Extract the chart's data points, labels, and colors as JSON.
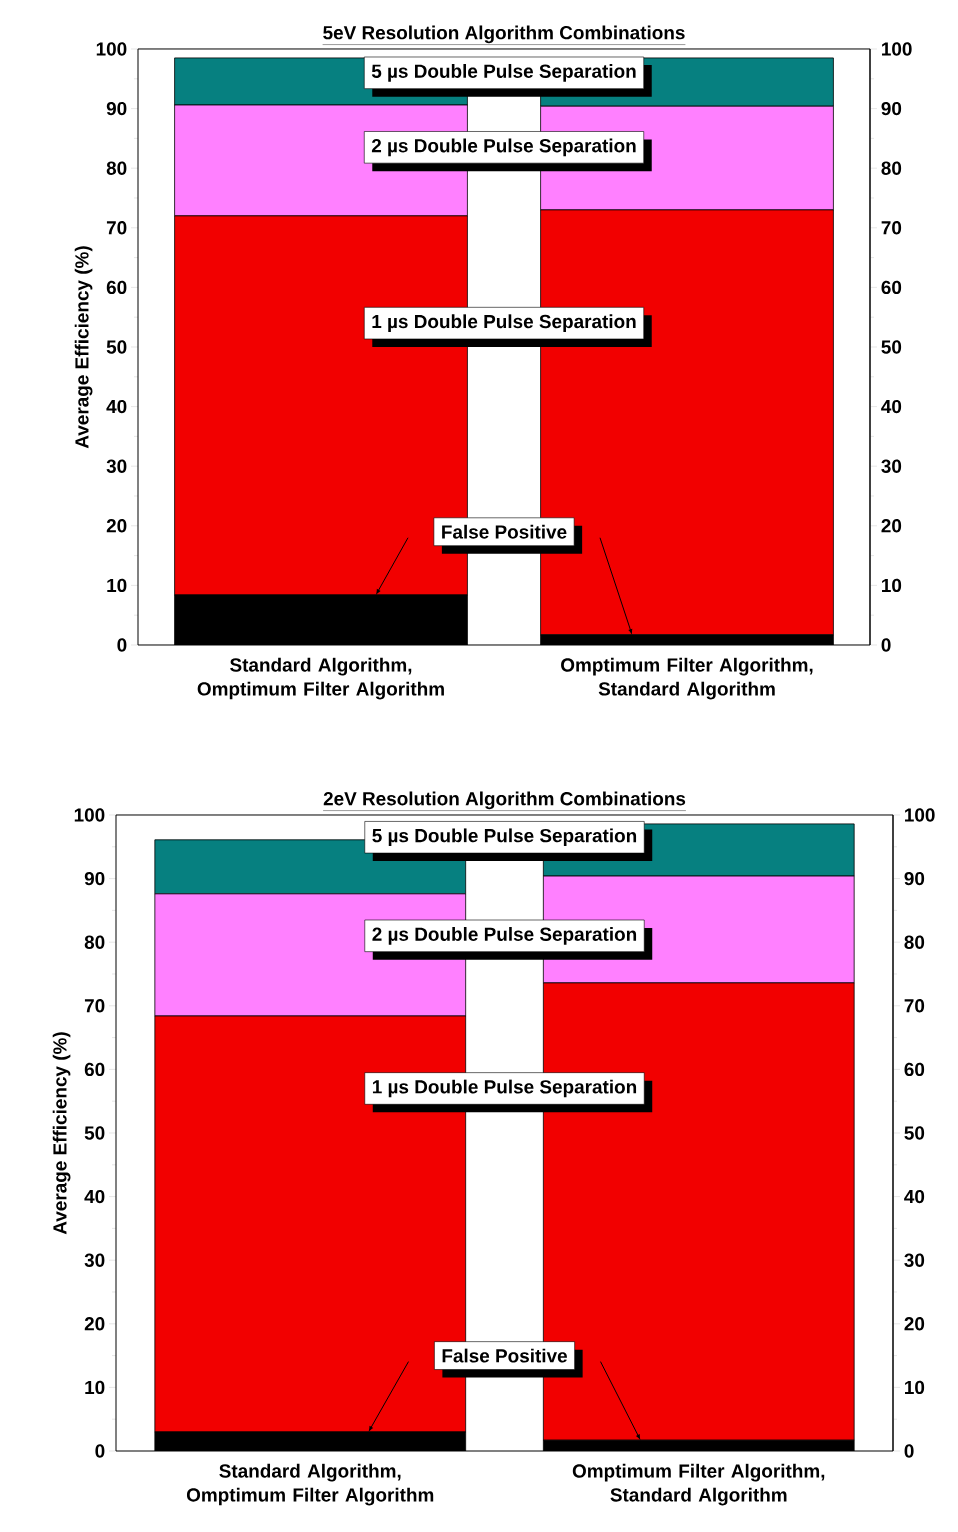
{
  "chart_data": [
    {
      "type": "bar",
      "title": "5eV Resolution Algorithm Combinations",
      "ylabel": "Average Efficiency (%)",
      "categories": [
        "Standard Algorithm, Omptimum Filter Algorithm",
        "Omptimum Filter Algorithm, Standard Algorithm"
      ],
      "stacked": true,
      "series": [
        {
          "name": "False Positive",
          "color": "#000000",
          "values": [
            8.4,
            1.7
          ]
        },
        {
          "name": "1 µs Double Pulse Separation",
          "color": "#f20000",
          "values": [
            63.6,
            71.3
          ]
        },
        {
          "name": "2 µs Double Pulse Separation",
          "color": "#ff80ff",
          "values": [
            18.6,
            17.4
          ]
        },
        {
          "name": "5 µs Double Pulse Separation",
          "color": "#068080",
          "values": [
            7.9,
            8.1
          ]
        }
      ],
      "ylim": [
        0,
        100
      ],
      "yticks": [
        0,
        10,
        20,
        30,
        40,
        50,
        60,
        70,
        80,
        90,
        100
      ],
      "y2lim": [
        0,
        100
      ],
      "y2ticks": [
        0,
        10,
        20,
        30,
        40,
        50,
        60,
        70,
        80,
        90,
        100
      ]
    },
    {
      "type": "bar",
      "title": "2eV Resolution Algorithm Combinations",
      "ylabel": "Average Efficiency (%)",
      "categories": [
        "Standard Algorithm, Omptimum Filter Algorithm",
        "Omptimum Filter Algorithm, Standard Algorithm"
      ],
      "stacked": true,
      "series": [
        {
          "name": "False Positive",
          "color": "#000000",
          "values": [
            3.0,
            1.7
          ]
        },
        {
          "name": "1 µs Double Pulse Separation",
          "color": "#f20000",
          "values": [
            65.4,
            71.9
          ]
        },
        {
          "name": "2 µs Double Pulse Separation",
          "color": "#ff80ff",
          "values": [
            19.2,
            16.8
          ]
        },
        {
          "name": "5 µs Double Pulse Separation",
          "color": "#068080",
          "values": [
            8.5,
            8.2
          ]
        }
      ],
      "ylim": [
        0,
        100
      ],
      "yticks": [
        0,
        10,
        20,
        30,
        40,
        50,
        60,
        70,
        80,
        90,
        100
      ],
      "y2lim": [
        0,
        100
      ],
      "y2ticks": [
        0,
        10,
        20,
        30,
        40,
        50,
        60,
        70,
        80,
        90,
        100
      ]
    }
  ]
}
